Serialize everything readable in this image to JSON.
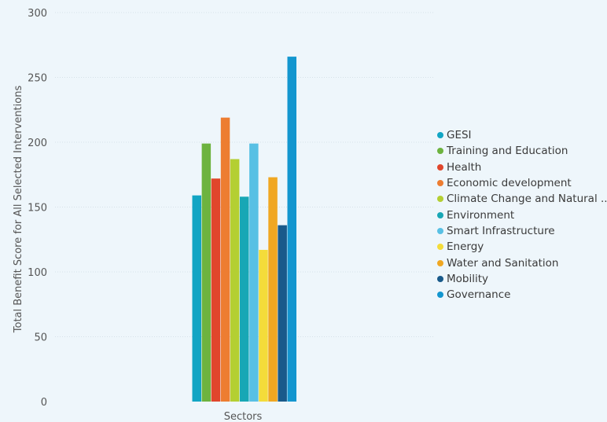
{
  "chart_data": {
    "type": "bar",
    "categories": [
      "Sectors"
    ],
    "xlabel": "Sectors",
    "ylabel": "Total Benefit Score for All Selected Interventions",
    "ylim": [
      0,
      300
    ],
    "yticks": [
      "0",
      "50",
      "100",
      "150",
      "200",
      "250",
      "300"
    ],
    "grid": true,
    "legend_position": "right",
    "series": [
      {
        "name": "GESI",
        "values": [
          159
        ],
        "color": "#12a5c4"
      },
      {
        "name": "Training and Education",
        "values": [
          199
        ],
        "color": "#6db33f"
      },
      {
        "name": "Health",
        "values": [
          172
        ],
        "color": "#e0462c"
      },
      {
        "name": "Economic development",
        "values": [
          219
        ],
        "color": "#ed7d31"
      },
      {
        "name": "Climate Change and Natural ...",
        "values": [
          187
        ],
        "color": "#b4cf32"
      },
      {
        "name": "Environment",
        "values": [
          158
        ],
        "color": "#18a7b5"
      },
      {
        "name": "Smart Infrastructure",
        "values": [
          199
        ],
        "color": "#58c0e4"
      },
      {
        "name": "Energy",
        "values": [
          117
        ],
        "color": "#f4dc3a"
      },
      {
        "name": "Water and Sanitation",
        "values": [
          173
        ],
        "color": "#f0a722"
      },
      {
        "name": "Mobility",
        "values": [
          136
        ],
        "color": "#195a8a"
      },
      {
        "name": "Governance",
        "values": [
          266
        ],
        "color": "#1396cf"
      }
    ]
  }
}
